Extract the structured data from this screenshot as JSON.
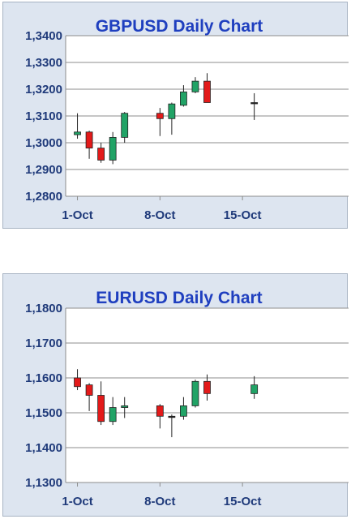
{
  "chart_data": [
    {
      "type": "candlestick",
      "title": "GBPUSD Daily Chart",
      "x_tick_labels": [
        "1-Oct",
        "8-Oct",
        "15-Oct"
      ],
      "y_tick_labels": [
        "1,2800",
        "1,2900",
        "1,3000",
        "1,3100",
        "1,3200",
        "1,3300",
        "1,3400"
      ],
      "ylim": [
        1.28,
        1.34
      ],
      "xlim": [
        0,
        24
      ],
      "x_tick_days": [
        1,
        8,
        15
      ],
      "grid": true,
      "colors": {
        "up": "#21a366",
        "down": "#e31a1a",
        "neutral": "#222222"
      },
      "candles": [
        {
          "day": 1,
          "open": 1.303,
          "high": 1.311,
          "low": 1.3015,
          "close": 1.304
        },
        {
          "day": 2,
          "open": 1.304,
          "high": 1.3045,
          "low": 1.294,
          "close": 1.298
        },
        {
          "day": 3,
          "open": 1.298,
          "high": 1.3,
          "low": 1.2925,
          "close": 1.2935
        },
        {
          "day": 4,
          "open": 1.2935,
          "high": 1.304,
          "low": 1.292,
          "close": 1.302
        },
        {
          "day": 5,
          "open": 1.302,
          "high": 1.3115,
          "low": 1.3,
          "close": 1.311
        },
        {
          "day": 8,
          "open": 1.311,
          "high": 1.313,
          "low": 1.3025,
          "close": 1.309
        },
        {
          "day": 9,
          "open": 1.309,
          "high": 1.315,
          "low": 1.303,
          "close": 1.3145
        },
        {
          "day": 10,
          "open": 1.314,
          "high": 1.3215,
          "low": 1.3135,
          "close": 1.319
        },
        {
          "day": 11,
          "open": 1.319,
          "high": 1.3245,
          "low": 1.3185,
          "close": 1.323
        },
        {
          "day": 12,
          "open": 1.323,
          "high": 1.326,
          "low": 1.315,
          "close": 1.315
        },
        {
          "day": 16,
          "open": 1.315,
          "high": 1.3185,
          "low": 1.3085,
          "close": 1.315
        }
      ]
    },
    {
      "type": "candlestick",
      "title": "EURUSD Daily Chart",
      "x_tick_labels": [
        "1-Oct",
        "8-Oct",
        "15-Oct"
      ],
      "y_tick_labels": [
        "1,1300",
        "1,1400",
        "1,1500",
        "1,1600",
        "1,1700",
        "1,1800"
      ],
      "ylim": [
        1.13,
        1.18
      ],
      "xlim": [
        0,
        24
      ],
      "x_tick_days": [
        1,
        8,
        15
      ],
      "grid": true,
      "colors": {
        "up": "#21a366",
        "down": "#e31a1a",
        "neutral": "#222222"
      },
      "candles": [
        {
          "day": 1,
          "open": 1.16,
          "high": 1.1625,
          "low": 1.1565,
          "close": 1.1575
        },
        {
          "day": 2,
          "open": 1.158,
          "high": 1.1585,
          "low": 1.1505,
          "close": 1.155
        },
        {
          "day": 3,
          "open": 1.155,
          "high": 1.159,
          "low": 1.1465,
          "close": 1.1475
        },
        {
          "day": 4,
          "open": 1.1475,
          "high": 1.1545,
          "low": 1.1465,
          "close": 1.1515
        },
        {
          "day": 5,
          "open": 1.1515,
          "high": 1.1545,
          "low": 1.1485,
          "close": 1.152
        },
        {
          "day": 8,
          "open": 1.152,
          "high": 1.1525,
          "low": 1.1455,
          "close": 1.149
        },
        {
          "day": 9,
          "open": 1.149,
          "high": 1.1495,
          "low": 1.143,
          "close": 1.149
        },
        {
          "day": 10,
          "open": 1.149,
          "high": 1.1545,
          "low": 1.148,
          "close": 1.152
        },
        {
          "day": 11,
          "open": 1.152,
          "high": 1.1595,
          "low": 1.1515,
          "close": 1.159
        },
        {
          "day": 12,
          "open": 1.159,
          "high": 1.161,
          "low": 1.1535,
          "close": 1.1555
        },
        {
          "day": 16,
          "open": 1.1555,
          "high": 1.1605,
          "low": 1.154,
          "close": 1.158
        }
      ]
    }
  ]
}
